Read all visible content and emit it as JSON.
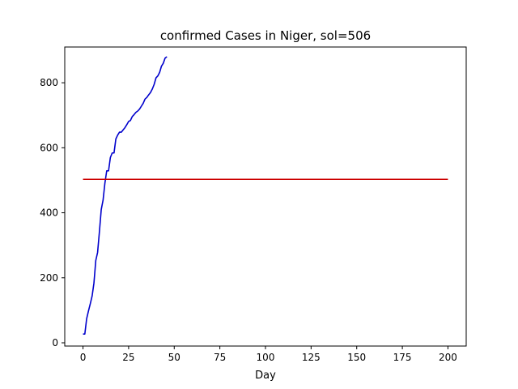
{
  "chart_data": {
    "type": "line",
    "title": "confirmed Cases in Niger, sol=506",
    "xlabel": "Day",
    "ylabel": "",
    "xlim": [
      -10,
      210
    ],
    "ylim": [
      -10,
      910
    ],
    "xticks": [
      0,
      25,
      50,
      75,
      100,
      125,
      150,
      175,
      200
    ],
    "yticks": [
      0,
      200,
      400,
      600,
      800
    ],
    "grid": false,
    "series": [
      {
        "color": "#0000cc",
        "x": [
          0,
          1,
          2,
          3,
          4,
          5,
          6,
          7,
          8,
          9,
          10,
          11,
          12,
          13,
          14,
          15,
          16,
          17,
          18,
          19,
          20,
          21,
          22,
          23,
          24,
          25,
          26,
          27,
          28,
          29,
          30,
          31,
          32,
          33,
          34,
          35,
          36,
          37,
          38,
          39,
          40,
          41,
          42,
          43,
          44,
          45,
          46
        ],
        "values": [
          27,
          27,
          74,
          98,
          120,
          144,
          184,
          253,
          278,
          342,
          410,
          439,
          491,
          529,
          529,
          570,
          584,
          584,
          627,
          639,
          648,
          648,
          655,
          662,
          671,
          681,
          684,
          696,
          702,
          709,
          713,
          719,
          728,
          737,
          750,
          755,
          763,
          770,
          781,
          795,
          815,
          821,
          832,
          851,
          860,
          876,
          880
        ]
      },
      {
        "color": "#cc0000",
        "x": [
          0,
          200
        ],
        "values": [
          503,
          503
        ]
      }
    ]
  }
}
